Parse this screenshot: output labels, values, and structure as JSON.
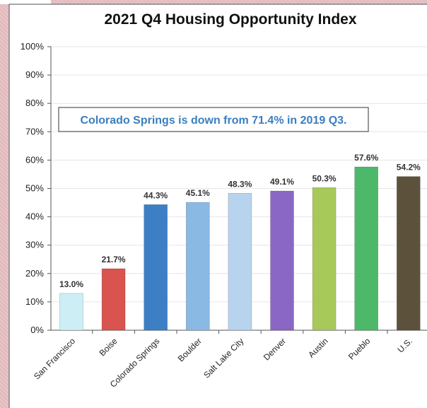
{
  "chart_data": {
    "type": "bar",
    "title": "2021 Q4 Housing Opportunity Index",
    "annotation": "Colorado Springs is down from 71.4% in 2019 Q3.",
    "categories": [
      "San Francisco",
      "Boise",
      "Colorado Springs",
      "Boulder",
      "Salt Lake City",
      "Denver",
      "Austin",
      "Pueblo",
      "U.S."
    ],
    "values": [
      13.0,
      21.7,
      44.3,
      45.1,
      48.3,
      49.1,
      50.3,
      57.6,
      54.2
    ],
    "data_labels": [
      "13.0%",
      "21.7%",
      "44.3%",
      "45.1%",
      "48.3%",
      "49.1%",
      "50.3%",
      "57.6%",
      "54.2%"
    ],
    "bar_colors": [
      "#cdeef5",
      "#d9534f",
      "#3c7fc4",
      "#8ab9e4",
      "#b7d3ee",
      "#8a67c4",
      "#a6c95a",
      "#4db86a",
      "#5c513b"
    ],
    "ylim": [
      0,
      100
    ],
    "yticks": [
      0,
      10,
      20,
      30,
      40,
      50,
      60,
      70,
      80,
      90,
      100
    ],
    "ytick_labels": [
      "0%",
      "10%",
      "20%",
      "30%",
      "40%",
      "50%",
      "60%",
      "70%",
      "80%",
      "90%",
      "100%"
    ],
    "grid": true,
    "legend": "none"
  }
}
